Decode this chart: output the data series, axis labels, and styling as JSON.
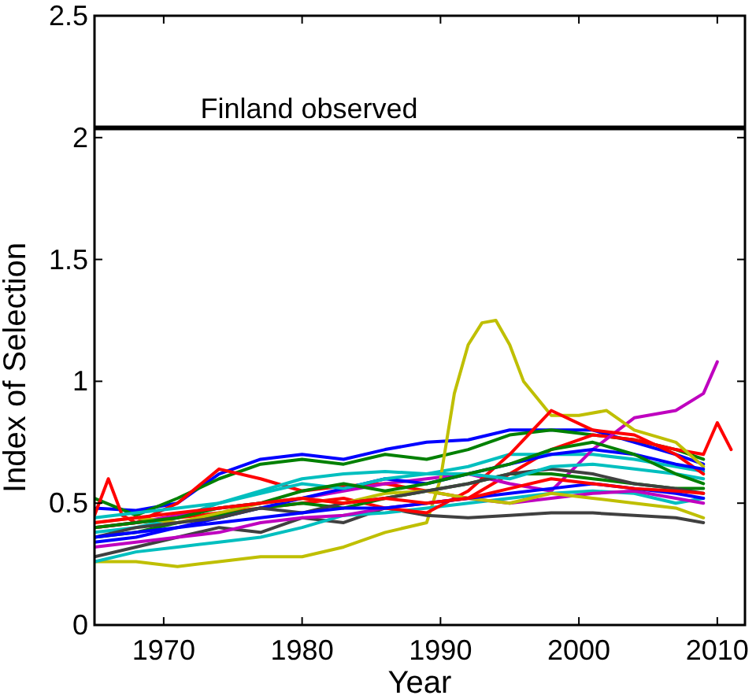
{
  "chart_data": {
    "type": "line",
    "xlabel": "Year",
    "ylabel": "Index of Selection",
    "xlim": [
      1965,
      2012
    ],
    "ylim": [
      0,
      2.5
    ],
    "xticks": [
      1970,
      1980,
      1990,
      2000,
      2010
    ],
    "yticks": [
      0,
      {
        "value": 0.5,
        "label": "0.5"
      },
      1,
      {
        "value": 1.5,
        "label": "1.5"
      },
      2,
      {
        "value": 2.5,
        "label": "2.5"
      }
    ],
    "grid": false,
    "marker": "none",
    "line_style": "solid",
    "ref_lines": [
      {
        "axis": "y",
        "value": 2.04,
        "label": "Finland observed",
        "color": "#000000"
      }
    ],
    "x": [
      1965,
      1968,
      1971,
      1974,
      1977,
      1980,
      1983,
      1986,
      1989,
      1992,
      1995,
      1998,
      2001,
      2004,
      2007,
      2009
    ],
    "series": [
      {
        "color": "#0000ff",
        "values": [
          0.48,
          0.47,
          0.5,
          0.62,
          0.68,
          0.7,
          0.68,
          0.72,
          0.75,
          0.76,
          0.8,
          0.8,
          0.8,
          0.75,
          0.7,
          0.66
        ]
      },
      {
        "color": "#008000",
        "values": [
          0.52,
          0.45,
          0.52,
          0.6,
          0.66,
          0.68,
          0.66,
          0.7,
          0.68,
          0.72,
          0.78,
          0.8,
          0.78,
          0.76,
          0.72,
          0.68
        ]
      },
      {
        "color": "#ff0000",
        "x": [
          1965,
          1966,
          1967,
          1968,
          1971,
          1974,
          1977,
          1980,
          1983,
          1986,
          1989,
          1992,
          1995,
          1998,
          2001,
          2004,
          2007,
          2009,
          2010,
          2011
        ],
        "values": [
          0.45,
          0.6,
          0.45,
          0.42,
          0.5,
          0.64,
          0.6,
          0.55,
          0.57,
          0.58,
          0.55,
          0.52,
          0.62,
          0.72,
          0.78,
          0.76,
          0.72,
          0.7,
          0.83,
          0.72
        ]
      },
      {
        "color": "#00bfbf",
        "values": [
          0.38,
          0.4,
          0.44,
          0.5,
          0.55,
          0.6,
          0.62,
          0.63,
          0.62,
          0.65,
          0.7,
          0.7,
          0.7,
          0.68,
          0.65,
          0.63
        ]
      },
      {
        "color": "#bf00bf",
        "x": [
          1965,
          1968,
          1971,
          1974,
          1977,
          1980,
          1983,
          1986,
          1989,
          1992,
          1995,
          1998,
          2001,
          2004,
          2007,
          2009,
          2010
        ],
        "values": [
          0.4,
          0.42,
          0.45,
          0.48,
          0.5,
          0.52,
          0.55,
          0.58,
          0.6,
          0.62,
          0.58,
          0.55,
          0.72,
          0.85,
          0.88,
          0.95,
          1.08
        ]
      },
      {
        "color": "#bfbf00",
        "x": [
          1965,
          1968,
          1971,
          1974,
          1977,
          1980,
          1983,
          1986,
          1989,
          1990,
          1991,
          1992,
          1993,
          1994,
          1995,
          1996,
          1998,
          2000,
          2002,
          2004,
          2007,
          2009
        ],
        "values": [
          0.26,
          0.26,
          0.24,
          0.26,
          0.28,
          0.28,
          0.32,
          0.38,
          0.42,
          0.6,
          0.95,
          1.15,
          1.24,
          1.25,
          1.15,
          1.0,
          0.86,
          0.86,
          0.88,
          0.8,
          0.75,
          0.65
        ]
      },
      {
        "color": "#404040",
        "values": [
          0.28,
          0.32,
          0.36,
          0.4,
          0.38,
          0.44,
          0.42,
          0.48,
          0.45,
          0.44,
          0.45,
          0.46,
          0.46,
          0.45,
          0.44,
          0.42
        ]
      },
      {
        "color": "#00bfbf",
        "values": [
          0.26,
          0.3,
          0.32,
          0.34,
          0.36,
          0.4,
          0.45,
          0.46,
          0.48,
          0.5,
          0.52,
          0.54,
          0.55,
          0.54,
          0.5,
          0.52
        ]
      },
      {
        "color": "#ff0000",
        "values": [
          0.4,
          0.42,
          0.44,
          0.46,
          0.48,
          0.5,
          0.52,
          0.48,
          0.46,
          0.55,
          0.7,
          0.88,
          0.8,
          0.78,
          0.7,
          0.62
        ]
      },
      {
        "color": "#008000",
        "values": [
          0.36,
          0.38,
          0.42,
          0.45,
          0.48,
          0.5,
          0.48,
          0.52,
          0.55,
          0.58,
          0.62,
          0.62,
          0.6,
          0.58,
          0.56,
          0.56
        ]
      },
      {
        "color": "#0000ff",
        "values": [
          0.34,
          0.36,
          0.4,
          0.44,
          0.48,
          0.52,
          0.56,
          0.6,
          0.58,
          0.62,
          0.66,
          0.7,
          0.72,
          0.7,
          0.66,
          0.64
        ]
      },
      {
        "color": "#bf00bf",
        "values": [
          0.32,
          0.34,
          0.36,
          0.38,
          0.42,
          0.44,
          0.45,
          0.48,
          0.5,
          0.52,
          0.5,
          0.52,
          0.54,
          0.55,
          0.52,
          0.5
        ]
      },
      {
        "color": "#bfbf00",
        "values": [
          0.42,
          0.44,
          0.42,
          0.46,
          0.5,
          0.52,
          0.5,
          0.54,
          0.55,
          0.52,
          0.5,
          0.54,
          0.52,
          0.5,
          0.48,
          0.44
        ]
      },
      {
        "color": "#404040",
        "values": [
          0.36,
          0.4,
          0.42,
          0.44,
          0.48,
          0.46,
          0.5,
          0.52,
          0.55,
          0.58,
          0.62,
          0.64,
          0.62,
          0.58,
          0.56,
          0.54
        ]
      },
      {
        "color": "#00bfbf",
        "values": [
          0.44,
          0.46,
          0.48,
          0.5,
          0.54,
          0.58,
          0.56,
          0.6,
          0.62,
          0.62,
          0.6,
          0.65,
          0.66,
          0.64,
          0.62,
          0.6
        ]
      },
      {
        "color": "#008000",
        "values": [
          0.4,
          0.42,
          0.44,
          0.48,
          0.5,
          0.55,
          0.58,
          0.55,
          0.58,
          0.62,
          0.66,
          0.72,
          0.75,
          0.7,
          0.62,
          0.58
        ]
      },
      {
        "color": "#0000ff",
        "values": [
          0.36,
          0.38,
          0.4,
          0.42,
          0.44,
          0.46,
          0.48,
          0.48,
          0.5,
          0.52,
          0.54,
          0.56,
          0.58,
          0.56,
          0.54,
          0.52
        ]
      },
      {
        "color": "#ff0000",
        "values": [
          0.42,
          0.44,
          0.46,
          0.48,
          0.5,
          0.52,
          0.5,
          0.52,
          0.5,
          0.52,
          0.56,
          0.6,
          0.58,
          0.56,
          0.55,
          0.54
        ]
      }
    ]
  }
}
